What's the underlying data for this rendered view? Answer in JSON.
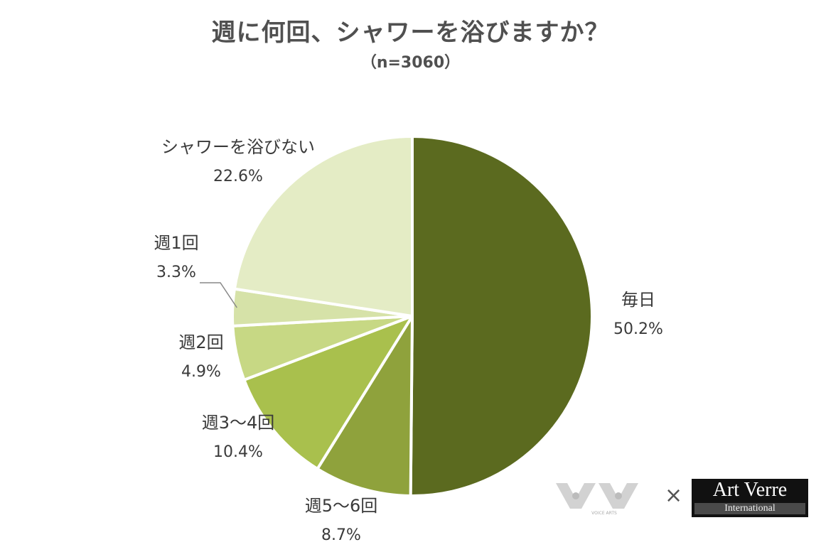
{
  "title": "週に何回、シャワーを浴びますか？",
  "subtitle": "（n=3060）",
  "chart_data": {
    "type": "pie",
    "title": "週に何回、シャワーを浴びますか？",
    "subtitle": "（n=3060）",
    "slices": [
      {
        "name": "毎日",
        "value": 50.2,
        "label": "50.2%",
        "color": "#5b6a1f"
      },
      {
        "name": "週5～6回",
        "value": 8.7,
        "label": "8.7%",
        "color": "#8fa23c"
      },
      {
        "name": "週3～4回",
        "value": 10.4,
        "label": "10.4%",
        "color": "#a9c04d"
      },
      {
        "name": "週2回",
        "value": 4.9,
        "label": "4.9%",
        "color": "#c7d884"
      },
      {
        "name": "週1回",
        "value": 3.3,
        "label": "3.3%",
        "color": "#d6e2a8"
      },
      {
        "name": "シャワーを浴びない",
        "value": 22.6,
        "label": "22.6%",
        "color": "#e4ecc5"
      }
    ],
    "start": "12 o'clock",
    "direction": "clockwise"
  },
  "logos": {
    "left_text": "VOICE ARTS",
    "separator": "×",
    "right_line1": "Art Verre",
    "right_line2": "International"
  }
}
